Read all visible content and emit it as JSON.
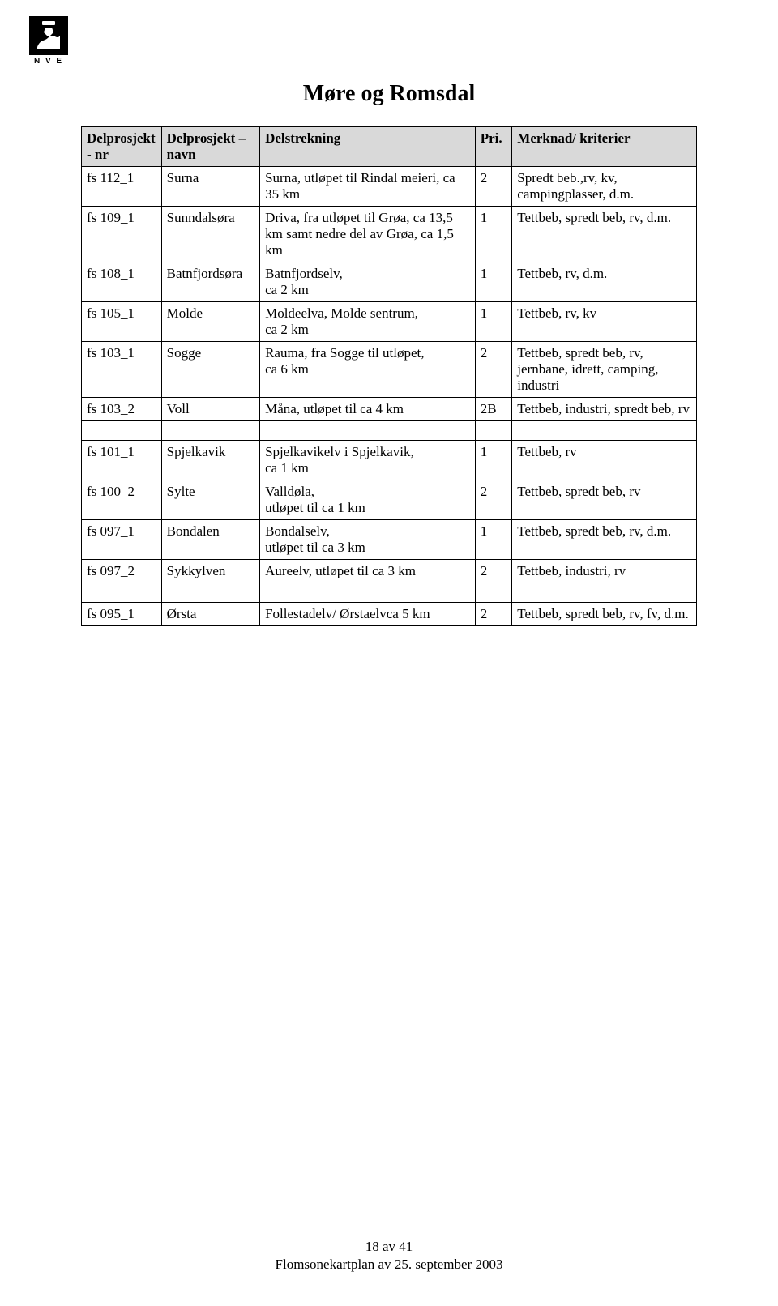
{
  "logo_text": "N V E",
  "title": "Møre og Romsdal",
  "columns": {
    "nr": "Delprosjekt - nr",
    "navn": "Delprosjekt – navn",
    "del": "Delstrekning",
    "pri": "Pri.",
    "merk": "Merknad/ kriterier"
  },
  "rows": [
    {
      "nr": "fs 112_1",
      "navn": "Surna",
      "del": "Surna, utløpet til Rindal meieri, ca 35 km",
      "pri": "2",
      "merk": "Spredt beb.,rv, kv, campingplasser, d.m."
    },
    {
      "nr": "fs 109_1",
      "navn": "Sunndalsøra",
      "del": "Driva, fra utløpet til Grøa, ca 13,5 km samt nedre del av Grøa, ca 1,5 km",
      "pri": "1",
      "merk": "Tettbeb, spredt beb, rv, d.m."
    },
    {
      "nr": "fs 108_1",
      "navn": "Batnfjordsøra",
      "del": "Batnfjordselv,\nca 2 km",
      "pri": "1",
      "merk": "Tettbeb, rv, d.m."
    },
    {
      "nr": "fs 105_1",
      "navn": "Molde",
      "del": "Moldeelva, Molde sentrum,\nca 2 km",
      "pri": "1",
      "merk": "Tettbeb, rv, kv"
    },
    {
      "nr": "fs 103_1",
      "navn": "Sogge",
      "del": "Rauma, fra Sogge til utløpet,\nca 6 km",
      "pri": "2",
      "merk": "Tettbeb, spredt beb, rv, jernbane, idrett, camping, industri"
    },
    {
      "nr": "fs 103_2",
      "navn": "Voll",
      "del": "Måna, utløpet til ca 4 km",
      "pri": "2B",
      "merk": "Tettbeb, industri, spredt beb, rv"
    },
    {
      "spacer": true
    },
    {
      "nr": "fs 101_1",
      "navn": "Spjelkavik",
      "del": "Spjelkavikelv i Spjelkavik,\nca 1 km",
      "pri": "1",
      "merk": "Tettbeb, rv"
    },
    {
      "nr": "fs 100_2",
      "navn": "Sylte",
      "del": "Valldøla,\nutløpet til ca 1 km",
      "pri": "2",
      "merk": "Tettbeb, spredt beb, rv"
    },
    {
      "nr": "fs 097_1",
      "navn": "Bondalen",
      "del": "Bondalselv,\nutløpet til ca 3 km",
      "pri": "1",
      "merk": "Tettbeb, spredt beb, rv, d.m."
    },
    {
      "nr": "fs 097_2",
      "navn": "Sykkylven",
      "del": "Aureelv, utløpet til ca 3 km",
      "pri": "2",
      "merk": "Tettbeb, industri, rv"
    },
    {
      "spacer": true
    },
    {
      "nr": "fs 095_1",
      "navn": "Ørsta",
      "del": "Follestadelv/ Ørstaelvca 5 km",
      "pri": "2",
      "merk": "Tettbeb, spredt beb, rv, fv, d.m."
    }
  ],
  "footer_line1": "18 av 41",
  "footer_line2": "Flomsonekartplan av 25. september 2003"
}
